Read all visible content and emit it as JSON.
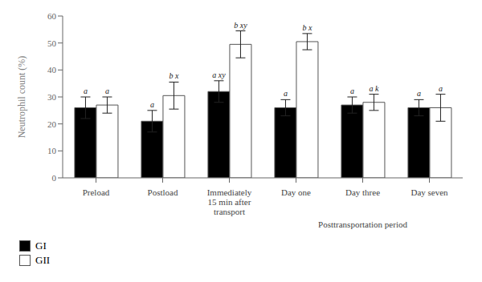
{
  "chart_data": {
    "type": "bar",
    "categories": [
      "Preload",
      "Postload",
      "Immediately\n15 min after\ntransport",
      "Day one",
      "Day three",
      "Day seven"
    ],
    "series": [
      {
        "name": "GI",
        "color": "#000000",
        "values": [
          26,
          21,
          32,
          26,
          27,
          26
        ],
        "errors": [
          4,
          4,
          4,
          3,
          3,
          3
        ],
        "labels": [
          "a",
          "a",
          "a xy",
          "a",
          "a",
          "a"
        ]
      },
      {
        "name": "GII",
        "color": "#ffffff",
        "values": [
          27,
          30.5,
          49.5,
          50.5,
          28,
          26
        ],
        "errors": [
          3,
          5,
          5,
          3,
          3,
          5
        ],
        "labels": [
          "a",
          "b x",
          "b xy",
          "b x",
          "a k",
          "a"
        ]
      }
    ],
    "ylabel": "Neutrophil count (%)",
    "group_label": {
      "text": "Posttransportation period",
      "from": "Day one",
      "to": "Day seven"
    },
    "ylim": [
      0,
      60
    ],
    "yticks": [
      0,
      10,
      20,
      30,
      40,
      50,
      60
    ]
  }
}
